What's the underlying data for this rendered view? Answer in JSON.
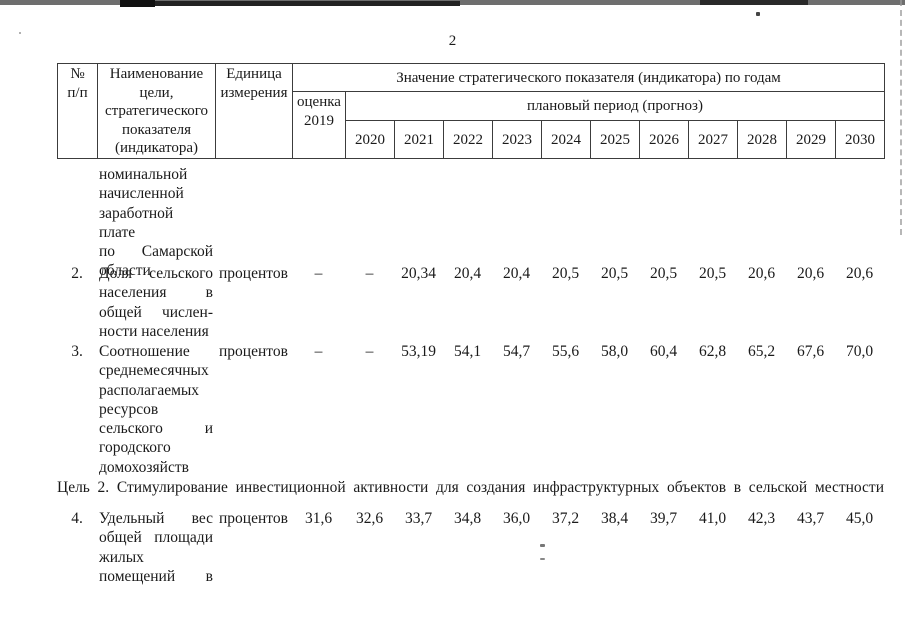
{
  "page": {
    "number": "2"
  },
  "colors": {
    "text": "#1a1a1a",
    "table_border": "#3c3c3c",
    "scan_bar": "#6e6e6e"
  },
  "table": {
    "header": {
      "num": "№\nп/п",
      "name": "Наименование\nцели,\nстратегического\nпоказателя\n(индикатора)",
      "unit": "Единица\nизмерения",
      "values_by_years": "Значение стратегического показателя (индикатора) по годам",
      "estimate": "оценка\n2019",
      "plan_period": "плановый период (прогноз)",
      "years": [
        "2020",
        "2021",
        "2022",
        "2023",
        "2024",
        "2025",
        "2026",
        "2027",
        "2028",
        "2029",
        "2030"
      ]
    },
    "rows": [
      {
        "num": "",
        "name_lines": [
          {
            "text": "номинальной",
            "justify": false
          },
          {
            "text": "начисленной",
            "justify": false
          },
          {
            "text": "заработной плате",
            "justify": true
          },
          {
            "text": "по Самарской",
            "justify": true
          },
          {
            "text": "области",
            "justify": false
          }
        ],
        "unit": "",
        "values": [
          "",
          "",
          "",
          "",
          "",
          "",
          "",
          "",
          "",
          "",
          "",
          ""
        ]
      },
      {
        "num": "2.",
        "name_lines": [
          {
            "text": "Доля сельского",
            "justify": true
          },
          {
            "text": "населения в",
            "justify": true
          },
          {
            "text": "общей числен-",
            "justify": true
          },
          {
            "text": "ности населения",
            "justify": false
          }
        ],
        "unit": "процентов",
        "values": [
          "–",
          "–",
          "20,34",
          "20,4",
          "20,4",
          "20,5",
          "20,5",
          "20,5",
          "20,5",
          "20,6",
          "20,6",
          "20,6"
        ]
      },
      {
        "num": "3.",
        "name_lines": [
          {
            "text": "Соотношение",
            "justify": false
          },
          {
            "text": "среднемесячных",
            "justify": false
          },
          {
            "text": "располагаемых",
            "justify": false
          },
          {
            "text": "ресурсов",
            "justify": false
          },
          {
            "text": "сельского и",
            "justify": true
          },
          {
            "text": "городского",
            "justify": false
          },
          {
            "text": "домохозяйств",
            "justify": false
          }
        ],
        "unit": "процентов",
        "values": [
          "–",
          "–",
          "53,19",
          "54,1",
          "54,7",
          "55,6",
          "58,0",
          "60,4",
          "62,8",
          "65,2",
          "67,6",
          "70,0"
        ]
      },
      {
        "num": "4.",
        "name_lines": [
          {
            "text": "Удельный вес",
            "justify": true
          },
          {
            "text": "общей площади",
            "justify": true
          },
          {
            "text": "жилых",
            "justify": false
          },
          {
            "text": "помещений в",
            "justify": true
          }
        ],
        "unit": "процентов",
        "values": [
          "31,6",
          "32,6",
          "33,7",
          "34,8",
          "36,0",
          "37,2",
          "38,4",
          "39,7",
          "41,0",
          "42,3",
          "43,7",
          "45,0"
        ]
      }
    ],
    "section_title": "Цель 2. Стимулирование инвестиционной активности для создания инфраструктурных объектов в сельской местности"
  }
}
